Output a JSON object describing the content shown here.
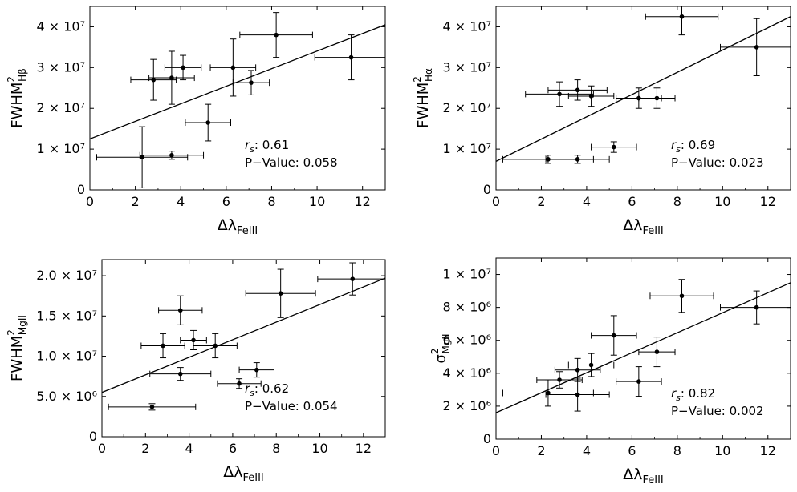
{
  "chart_data": [
    {
      "type": "scatter",
      "xlabel": {
        "prefix": "Δλ",
        "sub": "FeIII"
      },
      "ylabel": {
        "base": "FWHM",
        "sup": "2",
        "sub": "Hβ"
      },
      "xlim": [
        0,
        13
      ],
      "ylim": [
        0,
        45000000
      ],
      "xticks": [
        0,
        2,
        4,
        6,
        8,
        10,
        12
      ],
      "yticks": [
        {
          "value": 0,
          "label": "0"
        },
        {
          "value": 10000000,
          "label": "1 × 10⁷"
        },
        {
          "value": 20000000,
          "label": "2 × 10⁷"
        },
        {
          "value": 30000000,
          "label": "3 × 10⁷"
        },
        {
          "value": 40000000,
          "label": "4 × 10⁷"
        }
      ],
      "points": [
        {
          "x": 2.3,
          "y": 8000000,
          "xerr": 2.0,
          "yerr": 7500000
        },
        {
          "x": 2.8,
          "y": 27000000,
          "xerr": 1.0,
          "yerr": 5000000
        },
        {
          "x": 3.6,
          "y": 27500000,
          "xerr": 1.0,
          "yerr": 6500000
        },
        {
          "x": 3.6,
          "y": 8500000,
          "xerr": 1.4,
          "yerr": 1000000
        },
        {
          "x": 4.1,
          "y": 30000000,
          "xerr": 0.8,
          "yerr": 3000000
        },
        {
          "x": 5.2,
          "y": 16500000,
          "xerr": 1.0,
          "yerr": 4500000
        },
        {
          "x": 6.3,
          "y": 30000000,
          "xerr": 1.0,
          "yerr": 7000000
        },
        {
          "x": 7.1,
          "y": 26300000,
          "xerr": 0.8,
          "yerr": 3000000
        },
        {
          "x": 8.2,
          "y": 38000000,
          "xerr": 1.6,
          "yerr": 5500000
        },
        {
          "x": 11.5,
          "y": 32500000,
          "xerr": 1.6,
          "yerr": 5500000
        }
      ],
      "fit": {
        "x0": 0,
        "y0": 12500000,
        "x1": 13,
        "y1": 40500000
      },
      "rs_label": "r",
      "rs_sub": "s",
      "rs_value": ": 0.61",
      "pvalue": "P−Value: 0.058"
    },
    {
      "type": "scatter",
      "xlabel": {
        "prefix": "Δλ",
        "sub": "FeIII"
      },
      "ylabel": {
        "base": "FWHM",
        "sup": "2",
        "sub": "Hα"
      },
      "xlim": [
        0,
        13
      ],
      "ylim": [
        0,
        45000000
      ],
      "xticks": [
        0,
        2,
        4,
        6,
        8,
        10,
        12
      ],
      "yticks": [
        {
          "value": 0,
          "label": "0"
        },
        {
          "value": 10000000,
          "label": "1 × 10⁷"
        },
        {
          "value": 20000000,
          "label": "2 × 10⁷"
        },
        {
          "value": 30000000,
          "label": "3 × 10⁷"
        },
        {
          "value": 40000000,
          "label": "4 × 10⁷"
        }
      ],
      "points": [
        {
          "x": 2.3,
          "y": 7500000,
          "xerr": 2.0,
          "yerr": 1000000
        },
        {
          "x": 2.8,
          "y": 23500000,
          "xerr": 1.5,
          "yerr": 3000000
        },
        {
          "x": 3.6,
          "y": 24500000,
          "xerr": 1.3,
          "yerr": 2500000
        },
        {
          "x": 3.6,
          "y": 7500000,
          "xerr": 1.4,
          "yerr": 1000000
        },
        {
          "x": 4.2,
          "y": 23000000,
          "xerr": 1.0,
          "yerr": 2500000
        },
        {
          "x": 5.2,
          "y": 10500000,
          "xerr": 1.0,
          "yerr": 1300000
        },
        {
          "x": 6.3,
          "y": 22500000,
          "xerr": 1.0,
          "yerr": 2500000
        },
        {
          "x": 7.1,
          "y": 22500000,
          "xerr": 0.8,
          "yerr": 2500000
        },
        {
          "x": 8.2,
          "y": 42500000,
          "xerr": 1.6,
          "yerr": 4500000
        },
        {
          "x": 11.5,
          "y": 35000000,
          "xerr": 1.6,
          "yerr": 7000000
        }
      ],
      "fit": {
        "x0": 0,
        "y0": 7000000,
        "x1": 13,
        "y1": 42500000
      },
      "rs_label": "r",
      "rs_sub": "s",
      "rs_value": ": 0.69",
      "pvalue": "P−Value: 0.023"
    },
    {
      "type": "scatter",
      "xlabel": {
        "prefix": "Δλ",
        "sub": "FeIII"
      },
      "ylabel": {
        "base": "FWHM",
        "sup": "2",
        "sub": "MgII"
      },
      "xlim": [
        0,
        13
      ],
      "ylim": [
        0,
        22000000
      ],
      "xticks": [
        0,
        2,
        4,
        6,
        8,
        10,
        12
      ],
      "yticks": [
        {
          "value": 0,
          "label": "0"
        },
        {
          "value": 5000000,
          "label": "5.0 × 10⁶"
        },
        {
          "value": 10000000,
          "label": "1.0 × 10⁷"
        },
        {
          "value": 15000000,
          "label": "1.5 × 10⁷"
        },
        {
          "value": 20000000,
          "label": "2.0 × 10⁷"
        }
      ],
      "points": [
        {
          "x": 2.3,
          "y": 3700000,
          "xerr": 2.0,
          "yerr": 400000
        },
        {
          "x": 2.8,
          "y": 11300000,
          "xerr": 1.0,
          "yerr": 1500000
        },
        {
          "x": 3.6,
          "y": 15700000,
          "xerr": 1.0,
          "yerr": 1800000
        },
        {
          "x": 3.6,
          "y": 7800000,
          "xerr": 1.4,
          "yerr": 800000
        },
        {
          "x": 4.2,
          "y": 12000000,
          "xerr": 0.6,
          "yerr": 1200000
        },
        {
          "x": 5.2,
          "y": 11300000,
          "xerr": 1.0,
          "yerr": 1500000
        },
        {
          "x": 6.3,
          "y": 6600000,
          "xerr": 1.0,
          "yerr": 600000
        },
        {
          "x": 7.1,
          "y": 8300000,
          "xerr": 0.8,
          "yerr": 900000
        },
        {
          "x": 8.2,
          "y": 17800000,
          "xerr": 1.6,
          "yerr": 3000000
        },
        {
          "x": 11.5,
          "y": 19600000,
          "xerr": 1.6,
          "yerr": 2000000
        }
      ],
      "fit": {
        "x0": 0,
        "y0": 5500000,
        "x1": 13,
        "y1": 19700000
      },
      "rs_label": "r",
      "rs_sub": "s",
      "rs_value": ": 0.62",
      "pvalue": "P−Value: 0.054"
    },
    {
      "type": "scatter",
      "xlabel": {
        "prefix": "Δλ",
        "sub": "FeIII"
      },
      "ylabel": {
        "base": "σ",
        "sup": "2",
        "sub": "MgII"
      },
      "xlim": [
        0,
        13
      ],
      "ylim": [
        0,
        11000000
      ],
      "xticks": [
        0,
        2,
        4,
        6,
        8,
        10,
        12
      ],
      "yticks": [
        {
          "value": 0,
          "label": "0"
        },
        {
          "value": 2000000,
          "label": "2 × 10⁶"
        },
        {
          "value": 4000000,
          "label": "4 × 10⁶"
        },
        {
          "value": 6000000,
          "label": "6 × 10⁶"
        },
        {
          "value": 8000000,
          "label": "8 × 10⁶"
        },
        {
          "value": 10000000,
          "label": "1 × 10⁷"
        }
      ],
      "points": [
        {
          "x": 2.3,
          "y": 2800000,
          "xerr": 2.0,
          "yerr": 800000
        },
        {
          "x": 2.8,
          "y": 3600000,
          "xerr": 1.0,
          "yerr": 500000
        },
        {
          "x": 3.6,
          "y": 4200000,
          "xerr": 1.0,
          "yerr": 700000
        },
        {
          "x": 3.6,
          "y": 2700000,
          "xerr": 1.4,
          "yerr": 1000000
        },
        {
          "x": 4.2,
          "y": 4500000,
          "xerr": 1.0,
          "yerr": 700000
        },
        {
          "x": 5.2,
          "y": 6300000,
          "xerr": 1.0,
          "yerr": 1200000
        },
        {
          "x": 6.3,
          "y": 3500000,
          "xerr": 1.0,
          "yerr": 900000
        },
        {
          "x": 7.1,
          "y": 5300000,
          "xerr": 0.8,
          "yerr": 900000
        },
        {
          "x": 8.2,
          "y": 8700000,
          "xerr": 1.4,
          "yerr": 1000000
        },
        {
          "x": 11.5,
          "y": 8000000,
          "xerr": 1.6,
          "yerr": 1000000
        }
      ],
      "fit": {
        "x0": 0,
        "y0": 1600000,
        "x1": 13,
        "y1": 9500000
      },
      "rs_label": "r",
      "rs_sub": "s",
      "rs_value": ": 0.82",
      "pvalue": "P−Value: 0.002"
    }
  ]
}
